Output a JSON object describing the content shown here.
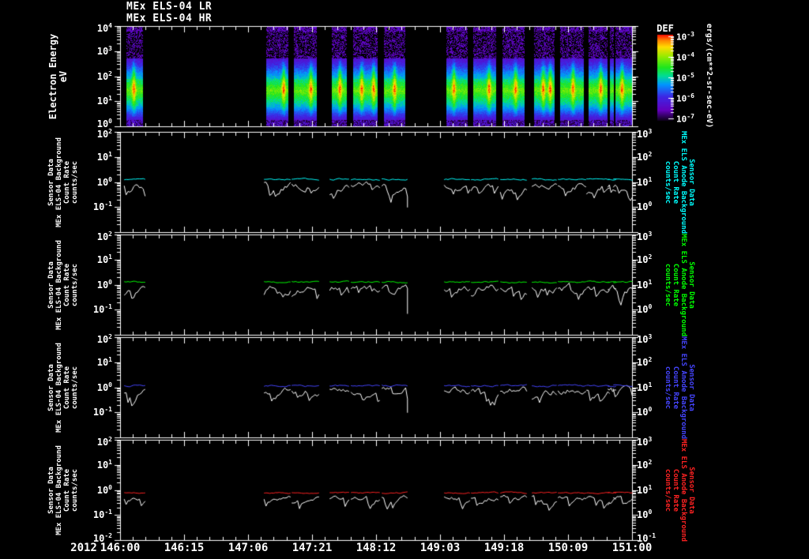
{
  "header": {
    "title_lr": "MEx ELS-04 LR",
    "title_hr": "MEx ELS-04 HR"
  },
  "x_axis": {
    "year": "2012",
    "tick_labels": [
      "146:00",
      "146:15",
      "147:06",
      "147:21",
      "148:12",
      "149:03",
      "149:18",
      "150:09",
      "151:00"
    ]
  },
  "colorbar": {
    "title": "DEF",
    "units": "ergs/(cm**2-sr-sec-eV)",
    "tick_labels": [
      "10^-3",
      "10^-4",
      "10^-5",
      "10^-6",
      "10^-7"
    ]
  },
  "spectrogram_panel": {
    "ylabel_lines": [
      "Electron Energy",
      "eV"
    ],
    "left_tick_labels": [
      "10^4",
      "10^3",
      "10^2",
      "10^1",
      "10^0"
    ]
  },
  "line_panel_ticks": {
    "left": [
      "10^2",
      "10^1",
      "10^0",
      "10^-1"
    ],
    "left_bottom": "10^-2",
    "right": [
      "10^3",
      "10^2",
      "10^1",
      "10^0"
    ],
    "right_bottom": "10^-1"
  },
  "line_panels": [
    {
      "left_label_lines": [
        "Sensor Data",
        "MEx ELS-04 Background",
        "Count Rate",
        "counts/sec"
      ],
      "right_label_lines": [
        "Sensor Data",
        "MEx ELS Anode Background",
        "Count Rate",
        "counts/sec"
      ],
      "right_color": "#00ffff"
    },
    {
      "left_label_lines": [
        "Sensor Data",
        "MEx ELS-04 Background",
        "Count Rate",
        "counts/sec"
      ],
      "right_label_lines": [
        "Sensor Data",
        "MEx ELS Anode Background",
        "Count Rate",
        "counts/sec"
      ],
      "right_color": "#00ff00"
    },
    {
      "left_label_lines": [
        "Sensor Data",
        "MEx ELS-04 Background",
        "Count Rate",
        "counts/sec"
      ],
      "right_label_lines": [
        "Sensor Data",
        "MEx ELS Anode Background",
        "Count Rate",
        "counts/sec"
      ],
      "right_color": "#4545ff"
    },
    {
      "left_label_lines": [
        "Sensor Data",
        "MEx ELS-04 Background",
        "Count Rate",
        "counts/sec"
      ],
      "right_label_lines": [
        "Sensor Data",
        "MEx ELS Anode Background",
        "Count Rate",
        "counts/sec"
      ],
      "right_color": "#ff2222"
    }
  ],
  "chart_data": [
    {
      "type": "heatmap",
      "title": "MEx ELS-04 LR / MEx ELS-04 HR electron energy-time spectrogram",
      "xlabel": "Time (2012, DOY:HH)",
      "ylabel": "Electron Energy (eV)",
      "y_scale": "log",
      "y_range": [
        1,
        10000
      ],
      "z_label": "DEF",
      "z_units": "ergs/(cm**2-sr-sec-eV)",
      "z_range": [
        1e-07,
        0.001
      ],
      "x_tick_labels": [
        "146:00",
        "146:15",
        "147:06",
        "147:21",
        "148:12",
        "149:03",
        "149:18",
        "150:09",
        "151:00"
      ],
      "colorbar_tick_labels": [
        "10^-3",
        "10^-4",
        "10^-5",
        "10^-6",
        "10^-7"
      ],
      "burst_intervals_frac": [
        [
          0.0123,
          0.0432
        ],
        [
          0.2855,
          0.3272
        ],
        [
          0.3395,
          0.3827
        ],
        [
          0.4136,
          0.4414
        ],
        [
          0.4552,
          0.5015
        ],
        [
          0.5154,
          0.5556
        ],
        [
          0.6373,
          0.6775
        ],
        [
          0.6898,
          0.733
        ],
        [
          0.7469,
          0.7886
        ],
        [
          0.8086,
          0.8472
        ],
        [
          0.8596,
          0.9043
        ],
        [
          0.9151,
          0.9506
        ],
        [
          0.9568,
          0.963
        ],
        [
          0.9676,
          1.0
        ]
      ],
      "burst_streaks_frac": [
        [
          0.45
        ],
        [
          0.8
        ],
        [
          0.75
        ],
        [
          0.55
        ],
        [
          0.35,
          0.85
        ],
        [
          0.5
        ],
        [
          0.35
        ],
        [
          0.7
        ],
        [
          0.6
        ],
        [
          0.45,
          0.8
        ],
        [
          0.55
        ],
        [
          0.65
        ],
        [],
        [
          0.4
        ]
      ],
      "description": "Bursty electron spectra separated by black data gaps: sparse violet/purple flux above ~300 eV, bright green-yellow peak near 5-100 eV with narrow vertical yellow streaks, fading blue at lowest energies"
    },
    {
      "type": "line",
      "y_scale": "log",
      "left_ylim": [
        0.01,
        100
      ],
      "right_ylim": [
        0.1,
        1000
      ],
      "series": [
        {
          "name": "MEx ELS-04 Background Count Rate",
          "color": "#ffffff",
          "axis": "left",
          "approx_level_counts_per_sec": 0.75
        },
        {
          "name": "MEx ELS Anode Background Count Rate",
          "color": "#00ffff",
          "axis": "right",
          "approx_level_counts_per_sec": 13
        }
      ],
      "downward_spike": {
        "x_frac": 0.556,
        "min_left_value": 0.1
      }
    },
    {
      "type": "line",
      "y_scale": "log",
      "left_ylim": [
        0.01,
        100
      ],
      "right_ylim": [
        0.1,
        1000
      ],
      "series": [
        {
          "name": "MEx ELS-04 Background Count Rate",
          "color": "#ffffff",
          "axis": "left",
          "approx_level_counts_per_sec": 0.75
        },
        {
          "name": "MEx ELS Anode Background Count Rate",
          "color": "#00ff00",
          "axis": "right",
          "approx_level_counts_per_sec": 13
        }
      ],
      "downward_spike": {
        "x_frac": 0.556,
        "min_left_value": 0.07
      }
    },
    {
      "type": "line",
      "y_scale": "log",
      "left_ylim": [
        0.01,
        100
      ],
      "right_ylim": [
        0.1,
        1000
      ],
      "series": [
        {
          "name": "MEx ELS-04 Background Count Rate",
          "color": "#ffffff",
          "axis": "left",
          "approx_level_counts_per_sec": 0.7
        },
        {
          "name": "MEx ELS Anode Background Count Rate",
          "color": "#4545ff",
          "axis": "right",
          "approx_level_counts_per_sec": 12
        }
      ],
      "downward_spike": {
        "x_frac": 0.556,
        "min_left_value": 0.1
      }
    },
    {
      "type": "line",
      "y_scale": "log",
      "left_ylim": [
        0.01,
        100
      ],
      "right_ylim": [
        0.1,
        1000
      ],
      "series": [
        {
          "name": "MEx ELS-04 Background Count Rate",
          "color": "#ffffff",
          "axis": "left",
          "approx_level_counts_per_sec": 0.5
        },
        {
          "name": "MEx ELS Anode Background Count Rate",
          "color": "#ff2222",
          "axis": "right",
          "approx_level_counts_per_sec": 8
        }
      ],
      "dip": {
        "x_frac": 0.83,
        "min_left_value": 0.3
      }
    }
  ]
}
